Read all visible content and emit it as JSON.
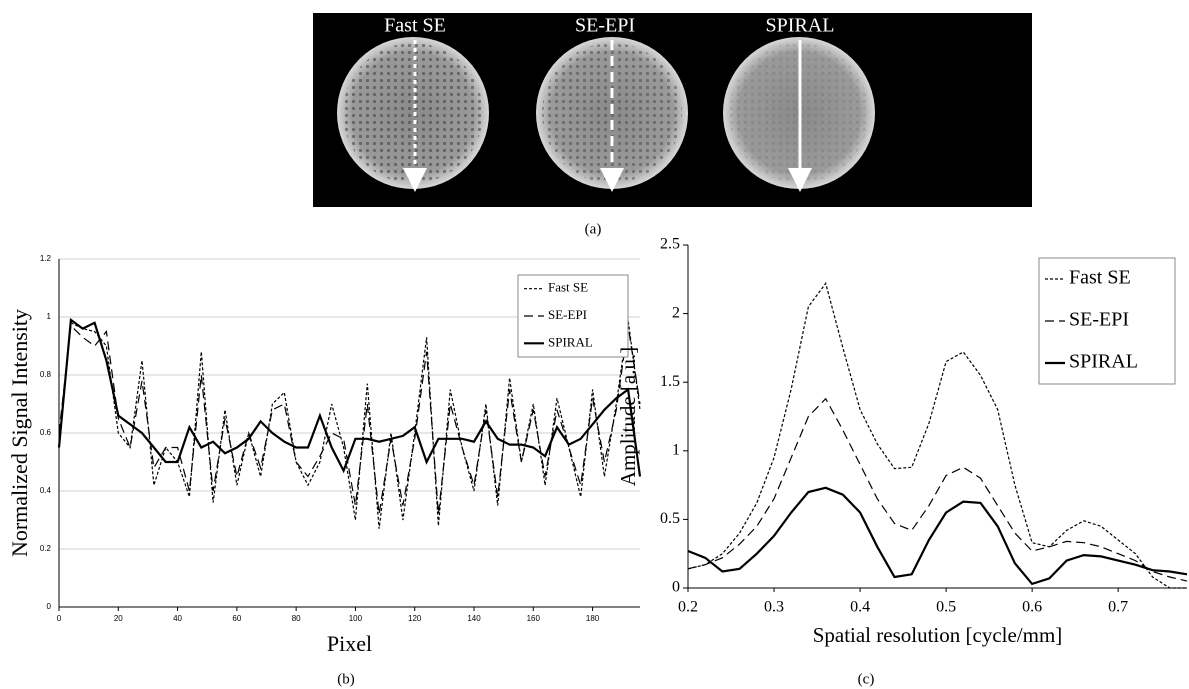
{
  "panel_a": {
    "labels": [
      "Fast SE",
      "SE-EPI",
      "SPIRAL"
    ],
    "caption": "(a)"
  },
  "chart_data": [
    {
      "type": "line",
      "caption": "(b)",
      "ylabel": "Normalized Signal Intensity",
      "xlabel": "Pixel",
      "x": [
        0,
        4,
        8,
        12,
        16,
        20,
        24,
        28,
        32,
        36,
        40,
        44,
        48,
        52,
        56,
        60,
        64,
        68,
        72,
        76,
        80,
        84,
        88,
        92,
        96,
        100,
        104,
        108,
        112,
        116,
        120,
        124,
        128,
        132,
        136,
        140,
        144,
        148,
        152,
        156,
        160,
        164,
        168,
        172,
        176,
        180,
        184,
        188,
        192,
        196
      ],
      "xlim": [
        0,
        196
      ],
      "xticks": [
        0,
        20,
        40,
        60,
        80,
        100,
        120,
        140,
        160,
        180
      ],
      "ylim": [
        0,
        1.2
      ],
      "yticks": [
        0,
        0.2,
        0.4,
        0.6,
        0.8,
        1,
        1.2
      ],
      "grid": true,
      "legend": "upper right",
      "series": [
        {
          "name": "Fast SE",
          "color": "#000000",
          "linestyle": "dotted",
          "values": [
            0.55,
            0.98,
            0.96,
            0.95,
            0.9,
            0.6,
            0.55,
            0.85,
            0.42,
            0.55,
            0.5,
            0.38,
            0.88,
            0.36,
            0.68,
            0.42,
            0.6,
            0.45,
            0.7,
            0.74,
            0.5,
            0.42,
            0.5,
            0.7,
            0.55,
            0.3,
            0.77,
            0.27,
            0.6,
            0.3,
            0.6,
            0.93,
            0.28,
            0.75,
            0.55,
            0.4,
            0.7,
            0.35,
            0.79,
            0.5,
            0.7,
            0.42,
            0.72,
            0.55,
            0.38,
            0.75,
            0.45,
            0.7,
            0.99,
            0.68
          ]
        },
        {
          "name": "SE-EPI",
          "color": "#000000",
          "linestyle": "dashed",
          "values": [
            0.6,
            0.97,
            0.93,
            0.9,
            0.95,
            0.65,
            0.55,
            0.78,
            0.48,
            0.55,
            0.55,
            0.4,
            0.8,
            0.4,
            0.65,
            0.45,
            0.6,
            0.48,
            0.68,
            0.7,
            0.5,
            0.45,
            0.52,
            0.6,
            0.58,
            0.35,
            0.7,
            0.32,
            0.58,
            0.35,
            0.58,
            0.88,
            0.32,
            0.7,
            0.55,
            0.42,
            0.68,
            0.38,
            0.75,
            0.5,
            0.68,
            0.45,
            0.68,
            0.55,
            0.42,
            0.72,
            0.5,
            0.68,
            0.97,
            0.7
          ]
        },
        {
          "name": "SPIRAL",
          "color": "#000000",
          "linestyle": "solid",
          "values": [
            0.55,
            0.99,
            0.96,
            0.98,
            0.85,
            0.66,
            0.63,
            0.6,
            0.55,
            0.5,
            0.5,
            0.62,
            0.55,
            0.57,
            0.53,
            0.55,
            0.58,
            0.64,
            0.6,
            0.57,
            0.55,
            0.55,
            0.66,
            0.55,
            0.47,
            0.58,
            0.58,
            0.57,
            0.58,
            0.59,
            0.62,
            0.5,
            0.58,
            0.58,
            0.58,
            0.57,
            0.64,
            0.58,
            0.56,
            0.56,
            0.55,
            0.52,
            0.62,
            0.56,
            0.58,
            0.63,
            0.68,
            0.72,
            0.75,
            0.45
          ]
        }
      ]
    },
    {
      "type": "line",
      "caption": "(c)",
      "ylabel": "Amplitude [a.u.]",
      "xlabel": "Spatial resolution [cycle/mm]",
      "x": [
        0.2,
        0.22,
        0.24,
        0.26,
        0.28,
        0.3,
        0.32,
        0.34,
        0.36,
        0.38,
        0.4,
        0.42,
        0.44,
        0.46,
        0.48,
        0.5,
        0.52,
        0.54,
        0.56,
        0.58,
        0.6,
        0.62,
        0.64,
        0.66,
        0.68,
        0.7,
        0.72,
        0.74,
        0.76,
        0.78
      ],
      "xlim": [
        0.2,
        0.78
      ],
      "xticks": [
        0.2,
        0.3,
        0.4,
        0.5,
        0.6,
        0.7
      ],
      "ylim": [
        0,
        2.5
      ],
      "yticks": [
        0,
        0.5,
        1,
        1.5,
        2,
        2.5
      ],
      "grid": false,
      "legend": "upper right",
      "series": [
        {
          "name": "Fast SE",
          "color": "#000000",
          "linestyle": "dotted",
          "values": [
            0.14,
            0.17,
            0.25,
            0.4,
            0.62,
            0.95,
            1.45,
            2.05,
            2.22,
            1.75,
            1.3,
            1.05,
            0.87,
            0.88,
            1.2,
            1.65,
            1.72,
            1.55,
            1.3,
            0.75,
            0.33,
            0.3,
            0.42,
            0.49,
            0.45,
            0.35,
            0.25,
            0.08,
            0,
            0
          ]
        },
        {
          "name": "SE-EPI",
          "color": "#000000",
          "linestyle": "dashed",
          "values": [
            0.14,
            0.17,
            0.22,
            0.32,
            0.45,
            0.65,
            0.95,
            1.25,
            1.38,
            1.15,
            0.9,
            0.65,
            0.47,
            0.42,
            0.6,
            0.82,
            0.88,
            0.8,
            0.6,
            0.4,
            0.27,
            0.3,
            0.34,
            0.33,
            0.3,
            0.25,
            0.2,
            0.12,
            0.08,
            0.05
          ]
        },
        {
          "name": "SPIRAL",
          "color": "#000000",
          "linestyle": "solid",
          "values": [
            0.27,
            0.22,
            0.12,
            0.14,
            0.25,
            0.38,
            0.55,
            0.7,
            0.73,
            0.68,
            0.55,
            0.3,
            0.08,
            0.1,
            0.35,
            0.55,
            0.63,
            0.62,
            0.45,
            0.18,
            0.03,
            0.07,
            0.2,
            0.24,
            0.23,
            0.2,
            0.17,
            0.13,
            0.12,
            0.1
          ]
        }
      ]
    }
  ]
}
